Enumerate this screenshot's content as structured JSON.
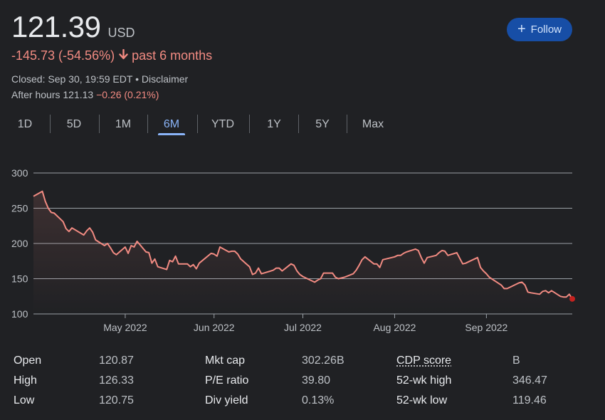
{
  "quote": {
    "price": "121.39",
    "currency": "USD",
    "change": "-145.73 (-54.56%)",
    "period": "past 6 months",
    "closed_text": "Closed: Sep 30, 19:59 EDT",
    "separator": " • ",
    "disclaimer": "Disclaimer",
    "after_hours_label": "After hours 121.13",
    "after_hours_change": "−0.26 (0.21%)"
  },
  "follow_button": {
    "label": "Follow"
  },
  "tabs": [
    "1D",
    "5D",
    "1M",
    "6M",
    "YTD",
    "1Y",
    "5Y",
    "Max"
  ],
  "active_tab": "6M",
  "colors": {
    "line": "#f28b82",
    "accent": "#8ab4f8",
    "grid": "#9aa0a6",
    "marker": "#c5221f"
  },
  "chart_data": {
    "type": "area",
    "x_start": "2022-04-01",
    "x_end": "2022-09-30",
    "ylim": [
      100,
      300
    ],
    "yticks": [
      100,
      150,
      200,
      250,
      300
    ],
    "grid": true,
    "x_ticks": [
      {
        "label": "May 2022",
        "date": "2022-05-02"
      },
      {
        "label": "Jun 2022",
        "date": "2022-06-01"
      },
      {
        "label": "Jul 2022",
        "date": "2022-07-01"
      },
      {
        "label": "Aug 2022",
        "date": "2022-08-01"
      },
      {
        "label": "Sep 2022",
        "date": "2022-09-01"
      }
    ],
    "series": [
      {
        "values": [
          [
            "2022-04-01",
            267
          ],
          [
            "2022-04-04",
            274
          ],
          [
            "2022-04-05",
            260
          ],
          [
            "2022-04-06",
            250
          ],
          [
            "2022-04-07",
            244
          ],
          [
            "2022-04-08",
            243
          ],
          [
            "2022-04-11",
            231
          ],
          [
            "2022-04-12",
            221
          ],
          [
            "2022-04-13",
            217
          ],
          [
            "2022-04-14",
            222
          ],
          [
            "2022-04-18",
            212
          ],
          [
            "2022-04-19",
            218
          ],
          [
            "2022-04-20",
            222
          ],
          [
            "2022-04-21",
            216
          ],
          [
            "2022-04-22",
            205
          ],
          [
            "2022-04-25",
            197
          ],
          [
            "2022-04-26",
            200
          ],
          [
            "2022-04-27",
            194
          ],
          [
            "2022-04-28",
            187
          ],
          [
            "2022-04-29",
            184
          ],
          [
            "2022-05-02",
            195
          ],
          [
            "2022-05-03",
            186
          ],
          [
            "2022-05-04",
            197
          ],
          [
            "2022-05-05",
            195
          ],
          [
            "2022-05-06",
            203
          ],
          [
            "2022-05-09",
            188
          ],
          [
            "2022-05-10",
            187
          ],
          [
            "2022-05-11",
            172
          ],
          [
            "2022-05-12",
            178
          ],
          [
            "2022-05-13",
            167
          ],
          [
            "2022-05-16",
            163
          ],
          [
            "2022-05-17",
            176
          ],
          [
            "2022-05-18",
            174
          ],
          [
            "2022-05-19",
            182
          ],
          [
            "2022-05-20",
            171
          ],
          [
            "2022-05-23",
            171
          ],
          [
            "2022-05-24",
            167
          ],
          [
            "2022-05-25",
            170
          ],
          [
            "2022-05-26",
            164
          ],
          [
            "2022-05-27",
            172
          ],
          [
            "2022-05-31",
            186
          ],
          [
            "2022-06-01",
            185
          ],
          [
            "2022-06-02",
            182
          ],
          [
            "2022-06-03",
            195
          ],
          [
            "2022-06-06",
            188
          ],
          [
            "2022-06-07",
            189
          ],
          [
            "2022-06-08",
            189
          ],
          [
            "2022-06-09",
            185
          ],
          [
            "2022-06-10",
            178
          ],
          [
            "2022-06-13",
            167
          ],
          [
            "2022-06-14",
            156
          ],
          [
            "2022-06-15",
            158
          ],
          [
            "2022-06-16",
            165
          ],
          [
            "2022-06-17",
            157
          ],
          [
            "2022-06-21",
            162
          ],
          [
            "2022-06-22",
            165
          ],
          [
            "2022-06-23",
            165
          ],
          [
            "2022-06-24",
            161
          ],
          [
            "2022-06-27",
            171
          ],
          [
            "2022-06-28",
            169
          ],
          [
            "2022-06-29",
            161
          ],
          [
            "2022-06-30",
            156
          ],
          [
            "2022-07-01",
            153
          ],
          [
            "2022-07-05",
            145
          ],
          [
            "2022-07-06",
            148
          ],
          [
            "2022-07-07",
            150
          ],
          [
            "2022-07-08",
            158
          ],
          [
            "2022-07-11",
            158
          ],
          [
            "2022-07-12",
            152
          ],
          [
            "2022-07-13",
            150
          ],
          [
            "2022-07-14",
            151
          ],
          [
            "2022-07-15",
            152
          ],
          [
            "2022-07-18",
            157
          ],
          [
            "2022-07-19",
            162
          ],
          [
            "2022-07-20",
            169
          ],
          [
            "2022-07-21",
            177
          ],
          [
            "2022-07-22",
            181
          ],
          [
            "2022-07-25",
            171
          ],
          [
            "2022-07-26",
            171
          ],
          [
            "2022-07-27",
            166
          ],
          [
            "2022-07-28",
            177
          ],
          [
            "2022-07-29",
            178
          ],
          [
            "2022-08-01",
            181
          ],
          [
            "2022-08-02",
            183
          ],
          [
            "2022-08-03",
            183
          ],
          [
            "2022-08-04",
            186
          ],
          [
            "2022-08-05",
            188
          ],
          [
            "2022-08-08",
            192
          ],
          [
            "2022-08-09",
            190
          ],
          [
            "2022-08-10",
            180
          ],
          [
            "2022-08-11",
            172
          ],
          [
            "2022-08-12",
            180
          ],
          [
            "2022-08-15",
            183
          ],
          [
            "2022-08-16",
            187
          ],
          [
            "2022-08-17",
            190
          ],
          [
            "2022-08-18",
            189
          ],
          [
            "2022-08-19",
            183
          ],
          [
            "2022-08-22",
            187
          ],
          [
            "2022-08-23",
            179
          ],
          [
            "2022-08-24",
            171
          ],
          [
            "2022-08-25",
            172
          ],
          [
            "2022-08-26",
            174
          ],
          [
            "2022-08-29",
            180
          ],
          [
            "2022-08-30",
            166
          ],
          [
            "2022-08-31",
            161
          ],
          [
            "2022-09-01",
            157
          ],
          [
            "2022-09-02",
            152
          ],
          [
            "2022-09-06",
            141
          ],
          [
            "2022-09-07",
            136
          ],
          [
            "2022-09-08",
            136
          ],
          [
            "2022-09-09",
            138
          ],
          [
            "2022-09-12",
            144
          ],
          [
            "2022-09-13",
            145
          ],
          [
            "2022-09-14",
            141
          ],
          [
            "2022-09-15",
            131
          ],
          [
            "2022-09-16",
            130
          ],
          [
            "2022-09-19",
            128
          ],
          [
            "2022-09-20",
            132
          ],
          [
            "2022-09-21",
            133
          ],
          [
            "2022-09-22",
            130
          ],
          [
            "2022-09-23",
            133
          ],
          [
            "2022-09-26",
            125
          ],
          [
            "2022-09-27",
            124
          ],
          [
            "2022-09-28",
            124
          ],
          [
            "2022-09-29",
            128
          ],
          [
            "2022-09-30",
            121.39
          ]
        ]
      }
    ]
  },
  "stats": [
    {
      "label": "Open",
      "value": "120.87"
    },
    {
      "label": "High",
      "value": "126.33"
    },
    {
      "label": "Low",
      "value": "120.75"
    },
    {
      "label": "Mkt cap",
      "value": "302.26B"
    },
    {
      "label": "P/E ratio",
      "value": "39.80"
    },
    {
      "label": "Div yield",
      "value": "0.13%"
    },
    {
      "label": "CDP score",
      "value": "B"
    },
    {
      "label": "52-wk high",
      "value": "346.47"
    },
    {
      "label": "52-wk low",
      "value": "119.46"
    }
  ]
}
